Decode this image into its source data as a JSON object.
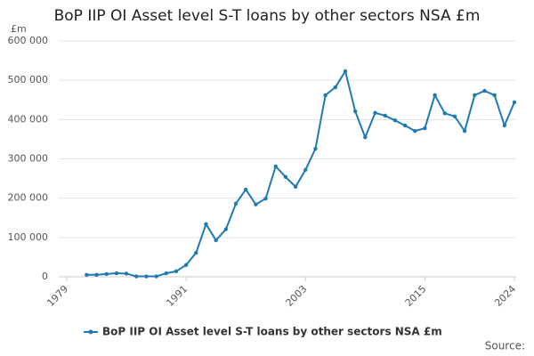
{
  "chart_data": {
    "type": "line",
    "title": "BoP IIP OI Asset level S-T loans by other sectors NSA £m",
    "y_label": "£m",
    "source": "Source:",
    "x": [
      1981,
      1982,
      1983,
      1984,
      1985,
      1986,
      1987,
      1988,
      1989,
      1990,
      1991,
      1992,
      1993,
      1994,
      1995,
      1996,
      1997,
      1998,
      1999,
      2000,
      2001,
      2002,
      2003,
      2004,
      2005,
      2006,
      2007,
      2008,
      2009,
      2010,
      2011,
      2012,
      2013,
      2014,
      2015,
      2016,
      2017,
      2018,
      2019,
      2020,
      2021,
      2022,
      2023,
      2024
    ],
    "series": [
      {
        "name": "BoP IIP OI Asset level S-T loans by other sectors NSA £m",
        "color": "#1f7ab4",
        "values": [
          5000,
          5000,
          7000,
          9000,
          8000,
          1000,
          1000,
          1000,
          9000,
          14000,
          30000,
          61000,
          134000,
          93000,
          121000,
          186000,
          222000,
          184000,
          199000,
          281000,
          254000,
          229000,
          272000,
          326000,
          462000,
          482000,
          523000,
          421000,
          355000,
          417000,
          410000,
          398000,
          385000,
          371000,
          378000,
          462000,
          416000,
          408000,
          371000,
          462000,
          473000,
          462000,
          385000,
          444000
        ]
      }
    ],
    "xlim": [
      1979,
      2024
    ],
    "xticks": [
      1979,
      1991,
      2003,
      2015,
      2024
    ],
    "ylim": [
      0,
      600000
    ],
    "yticks": [
      0,
      {
        "value": 100000,
        "label": "100 000"
      },
      {
        "value": 200000,
        "label": "200 000"
      },
      {
        "value": 300000,
        "label": "300 000"
      },
      {
        "value": 400000,
        "label": "400 000"
      },
      {
        "value": 500000,
        "label": "500 000"
      },
      {
        "value": 600000,
        "label": "600 000"
      }
    ],
    "grid": true
  }
}
